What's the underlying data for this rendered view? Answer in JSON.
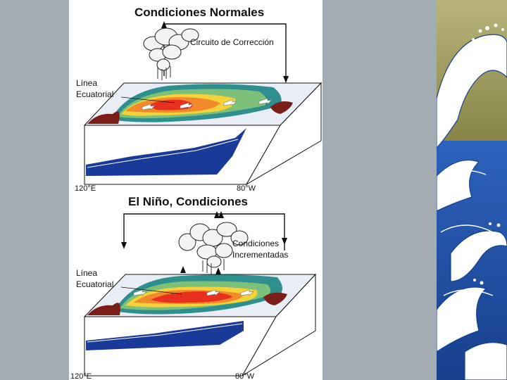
{
  "normal": {
    "title": "Condiciones Normales",
    "circuit_label": "Circuito de Corrección",
    "equator_label_line1": "Línea",
    "equator_label_line2": "Ecuatorial",
    "lon_west": "120°E",
    "lon_east": "80°W"
  },
  "nino": {
    "title": "El Niño, Condiciones",
    "circuit_label_line1": "Condiciones",
    "circuit_label_line2": "Incrementadas",
    "equator_label_line1": "Línea",
    "equator_label_line2": "Ecuatorial",
    "lon_west": "120°E",
    "lon_east": "80°W"
  },
  "colors": {
    "background": "#a3abb3",
    "panel": "#ffffff",
    "ocean_deep": "#1a3a9a",
    "warm_core": "#e8301e",
    "warm": "#f28a2a",
    "mild": "#f3d23a",
    "cool": "#7cc07a",
    "cold": "#2f8f8f",
    "land": "#7a1e1a",
    "wave_blue": "#1e4fa6",
    "wave_olive": "#9c9a55"
  },
  "icons": {
    "cloud": "cloud-icon",
    "arrow": "arrow-icon",
    "wave": "wave-decoration"
  }
}
